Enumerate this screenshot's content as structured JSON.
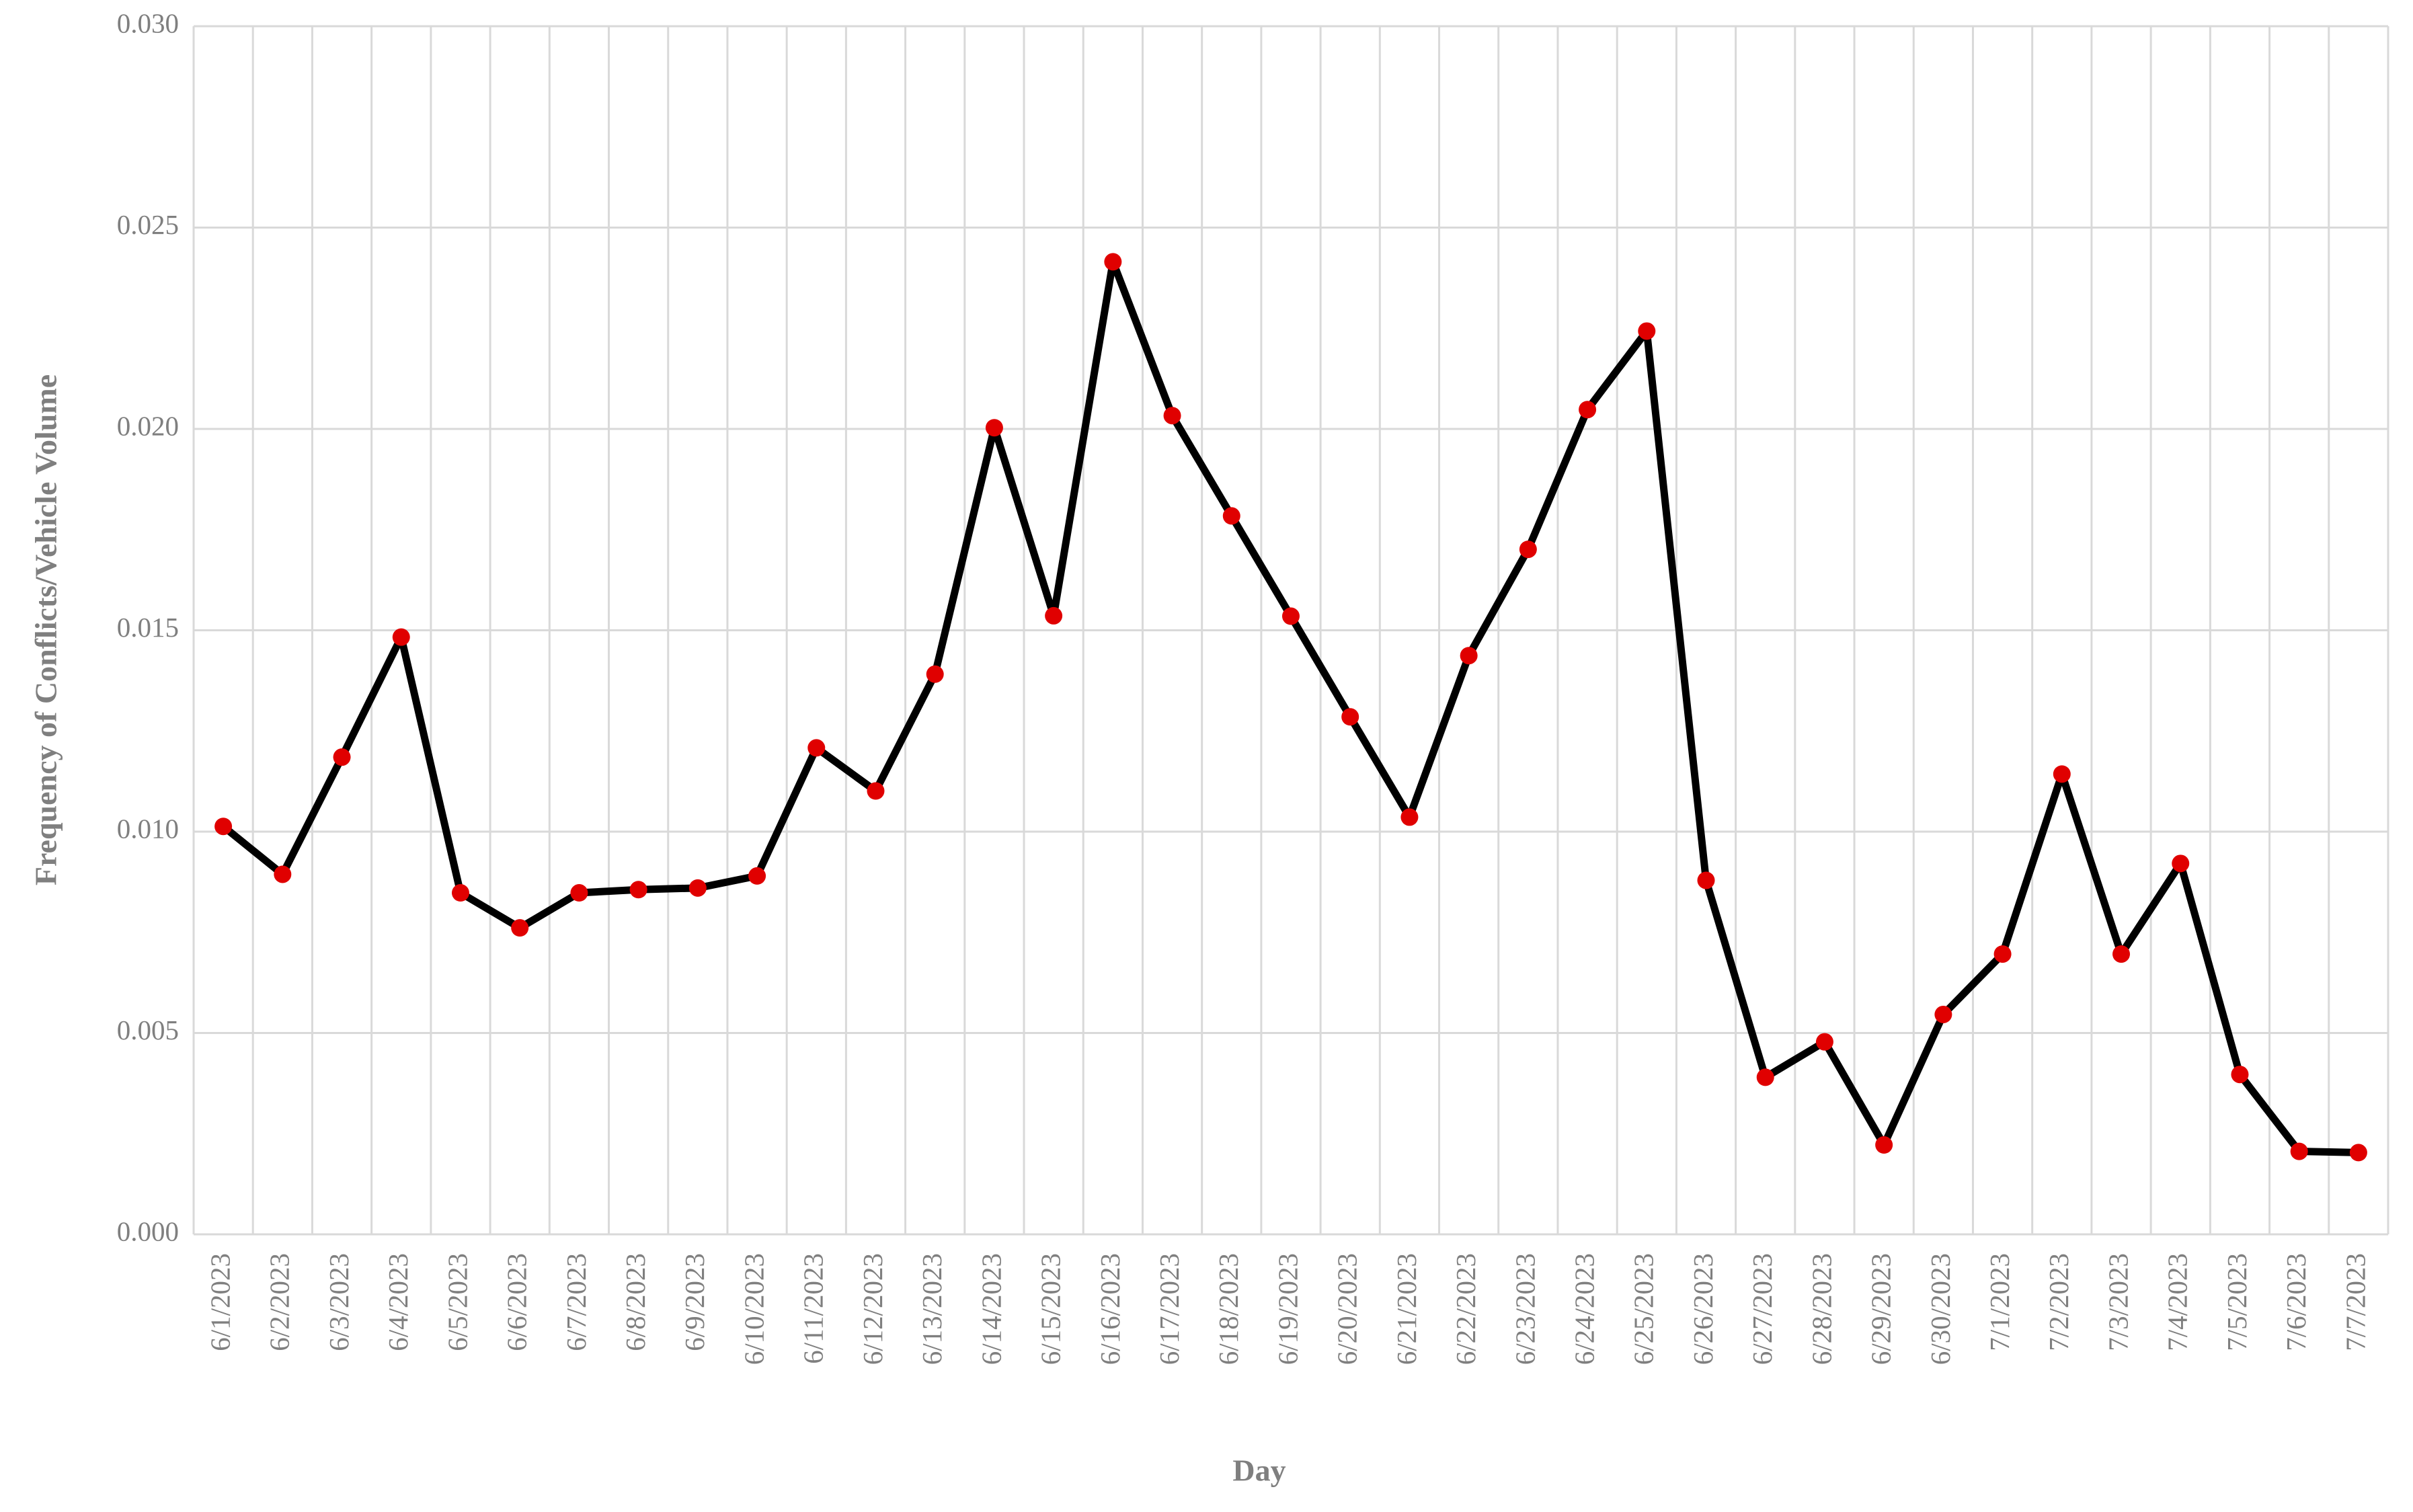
{
  "chart_data": {
    "type": "line",
    "x_label": "Day",
    "y_label": "Frequency of Conflicts/Vehicle Volume",
    "categories": [
      "6/1/2023",
      "6/2/2023",
      "6/3/2023",
      "6/4/2023",
      "6/5/2023",
      "6/6/2023",
      "6/7/2023",
      "6/8/2023",
      "6/9/2023",
      "6/10/2023",
      "6/11/2023",
      "6/12/2023",
      "6/13/2023",
      "6/14/2023",
      "6/15/2023",
      "6/16/2023",
      "6/17/2023",
      "6/18/2023",
      "6/19/2023",
      "6/20/2023",
      "6/21/2023",
      "6/22/2023",
      "6/23/2023",
      "6/24/2023",
      "6/25/2023",
      "6/26/2023",
      "6/27/2023",
      "6/28/2023",
      "6/29/2023",
      "6/30/2023",
      "7/1/2023",
      "7/2/2023",
      "7/3/2023",
      "7/4/2023",
      "7/5/2023",
      "7/6/2023",
      "7/7/2023"
    ],
    "series": [
      {
        "color": "#000000",
        "marker_color": "#e00000",
        "values": [
          0.01013,
          0.00894,
          0.01185,
          0.01483,
          0.00848,
          0.00761,
          0.00848,
          0.00856,
          0.0086,
          0.0089,
          0.01208,
          0.01101,
          0.01391,
          0.02003,
          0.01536,
          0.02415,
          0.02033,
          0.01784,
          0.01535,
          0.01285,
          0.01036,
          0.01437,
          0.01701,
          0.02048,
          0.02243,
          0.00879,
          0.0039,
          0.00478,
          0.00222,
          0.00546,
          0.00696,
          0.01143,
          0.00696,
          0.00921,
          0.00397,
          0.00206,
          0.00203
        ]
      }
    ],
    "ylim": [
      0,
      0.03
    ],
    "yticks": [
      {
        "value": 0,
        "label": "0.000"
      },
      {
        "value": 0.005,
        "label": "0.005"
      },
      {
        "value": 0.01,
        "label": "0.010"
      },
      {
        "value": 0.015,
        "label": "0.015"
      },
      {
        "value": 0.02,
        "label": "0.020"
      },
      {
        "value": 0.025,
        "label": "0.025"
      },
      {
        "value": 0.03,
        "label": "0.030"
      }
    ],
    "grid": true
  }
}
